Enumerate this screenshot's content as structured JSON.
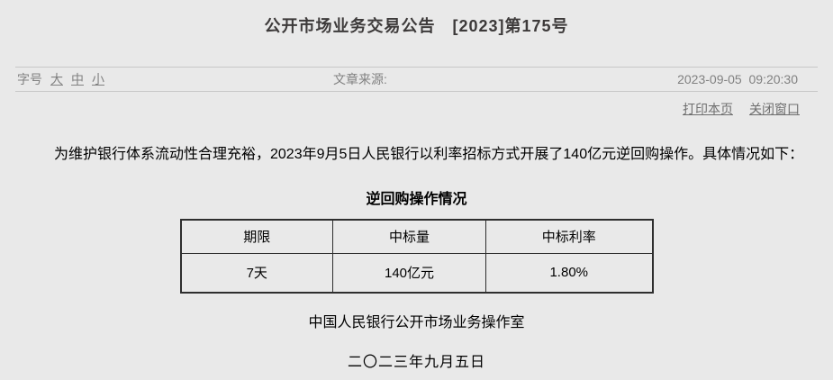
{
  "page": {
    "title": "公开市场业务交易公告　[2023]第175号"
  },
  "meta": {
    "font_size_label": "字号",
    "font_sizes": [
      "大",
      "中",
      "小"
    ],
    "source_label": "文章来源:",
    "timestamp": "2023-09-05  09:20:30"
  },
  "actions": {
    "print_label": "打印本页",
    "close_label": "关闭窗口"
  },
  "content": {
    "paragraph": "为维护银行体系流动性合理充裕，2023年9月5日人民银行以利率招标方式开展了140亿元逆回购操作。具体情况如下：",
    "table_title": "逆回购操作情况",
    "signature": "中国人民银行公开市场业务操作室",
    "date": "二〇二三年九月五日"
  },
  "table": {
    "headers": [
      "期限",
      "中标量",
      "中标利率"
    ],
    "rows": [
      [
        "7天",
        "140亿元",
        "1.80%"
      ]
    ]
  },
  "colors": {
    "background": "#e9e9e9",
    "divider": "#c8c8c8",
    "muted_text": "#818181",
    "link_text": "#6e6e6e",
    "table_border": "#2e2e2e",
    "title_text": "#3d3a3a"
  }
}
